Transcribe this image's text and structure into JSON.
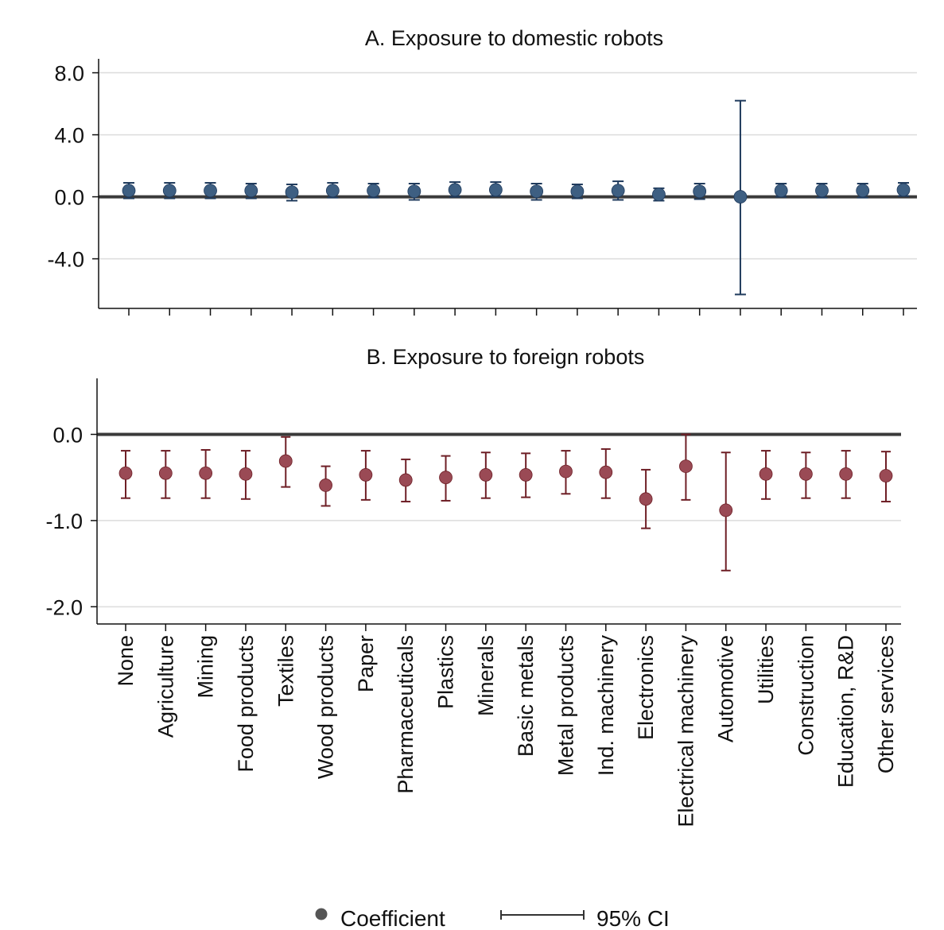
{
  "legend": {
    "coefficient_label": "Coefficient",
    "ci_label": "95% CI"
  },
  "chart_data": [
    {
      "type": "scatter",
      "subtype": "coefficient-plot-with-error-bars",
      "title": "A. Exposure to domestic robots",
      "ylim": [
        -7.2,
        8.9
      ],
      "yticks": [
        8.0,
        4.0,
        0.0,
        -4.0
      ],
      "ytick_labels": [
        "8.0",
        "4.0",
        "0.0",
        "-4.0"
      ],
      "grid": true,
      "zero_line": true,
      "x_tick_labels_shown": false,
      "marker_color": "#3e5f82",
      "ci_color": "#1f3a5c",
      "categories": [
        "None",
        "Agriculture",
        "Mining",
        "Food products",
        "Textiles",
        "Wood products",
        "Paper",
        "Pharmaceuticals",
        "Plastics",
        "Minerals",
        "Basic metals",
        "Metal products",
        "Ind. machinery",
        "Electronics",
        "Electrical machinery",
        "Automotive",
        "Utilities",
        "Construction",
        "Education, R&D",
        "Other services"
      ],
      "series": [
        {
          "name": "Coefficient",
          "values": [
            0.4,
            0.4,
            0.4,
            0.4,
            0.3,
            0.4,
            0.4,
            0.35,
            0.45,
            0.45,
            0.35,
            0.35,
            0.4,
            0.15,
            0.35,
            0.0,
            0.4,
            0.4,
            0.4,
            0.45
          ],
          "ci_low": [
            -0.1,
            -0.1,
            -0.1,
            -0.1,
            -0.25,
            -0.05,
            -0.05,
            -0.2,
            0.0,
            0.05,
            -0.2,
            -0.1,
            -0.2,
            -0.25,
            -0.15,
            -6.3,
            0.0,
            -0.05,
            -0.05,
            0.05
          ],
          "ci_high": [
            0.9,
            0.9,
            0.9,
            0.85,
            0.8,
            0.9,
            0.85,
            0.85,
            0.95,
            0.95,
            0.85,
            0.8,
            1.0,
            0.55,
            0.85,
            6.2,
            0.85,
            0.85,
            0.85,
            0.9
          ]
        }
      ]
    },
    {
      "type": "scatter",
      "subtype": "coefficient-plot-with-error-bars",
      "title": "B. Exposure to foreign robots",
      "ylim": [
        -2.2,
        0.65
      ],
      "yticks": [
        0.0,
        -1.0,
        -2.0
      ],
      "ytick_labels": [
        "0.0",
        "-1.0",
        "-2.0"
      ],
      "grid": true,
      "zero_line": true,
      "x_tick_labels_shown": true,
      "x_tick_label_rotation": -90,
      "marker_color": "#9a4a55",
      "ci_color": "#6e1f26",
      "categories": [
        "None",
        "Agriculture",
        "Mining",
        "Food products",
        "Textiles",
        "Wood products",
        "Paper",
        "Pharmaceuticals",
        "Plastics",
        "Minerals",
        "Basic metals",
        "Metal products",
        "Ind. machinery",
        "Electronics",
        "Electrical machinery",
        "Automotive",
        "Utilities",
        "Construction",
        "Education, R&D",
        "Other services"
      ],
      "series": [
        {
          "name": "Coefficient",
          "values": [
            -0.45,
            -0.45,
            -0.45,
            -0.46,
            -0.31,
            -0.59,
            -0.47,
            -0.53,
            -0.5,
            -0.47,
            -0.47,
            -0.43,
            -0.44,
            -0.75,
            -0.37,
            -0.88,
            -0.46,
            -0.46,
            -0.46,
            -0.48
          ],
          "ci_low": [
            -0.74,
            -0.74,
            -0.74,
            -0.75,
            -0.61,
            -0.83,
            -0.76,
            -0.78,
            -0.77,
            -0.74,
            -0.73,
            -0.69,
            -0.74,
            -1.09,
            -0.76,
            -1.58,
            -0.75,
            -0.74,
            -0.74,
            -0.78
          ],
          "ci_high": [
            -0.19,
            -0.19,
            -0.18,
            -0.19,
            -0.03,
            -0.37,
            -0.19,
            -0.29,
            -0.25,
            -0.21,
            -0.22,
            -0.19,
            -0.17,
            -0.41,
            0.0,
            -0.21,
            -0.19,
            -0.21,
            -0.19,
            -0.2
          ]
        }
      ]
    }
  ]
}
